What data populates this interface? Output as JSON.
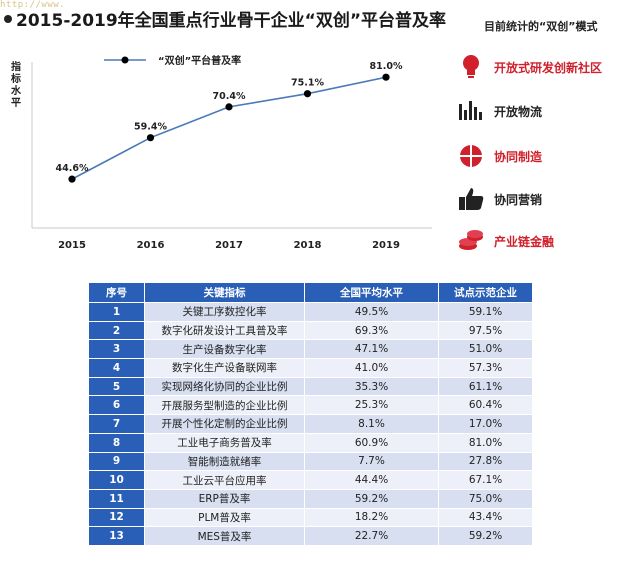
{
  "watermark": "http://www.",
  "title": "2015-2019年全国重点行业骨干企业“双创”平台普及率",
  "chart_data": {
    "type": "line",
    "title": "2015-2019年全国重点行业骨干企业“双创”平台普及率",
    "ylabel": "指标水平",
    "xlabel": "",
    "categories": [
      "2015",
      "2016",
      "2017",
      "2018",
      "2019"
    ],
    "series": [
      {
        "name": "“双创”平台普及率",
        "values": [
          44.6,
          59.4,
          70.4,
          75.1,
          81.0
        ],
        "labels": [
          "44.6%",
          "59.4%",
          "70.4%",
          "75.1%",
          "81.0%"
        ]
      }
    ],
    "ylim": [
      30,
      90
    ],
    "grid": false,
    "legend": "top-left",
    "colors": {
      "line": "#4a7ab8",
      "marker": "#000000"
    }
  },
  "modes": {
    "title": "目前统计的“双创”模式",
    "items": [
      {
        "label": "开放式研发创新社区",
        "icon": "lightbulb-icon",
        "color": "#d0202c"
      },
      {
        "label": "开放物流",
        "icon": "bar-chart-icon",
        "color": "#222222"
      },
      {
        "label": "协同制造",
        "icon": "pie-chart-icon",
        "color": "#d0202c"
      },
      {
        "label": "协同营销",
        "icon": "thumbs-up-icon",
        "color": "#222222"
      },
      {
        "label": "产业链金融",
        "icon": "coins-icon",
        "color": "#d0202c"
      }
    ]
  },
  "table": {
    "headers": [
      "序号",
      "关键指标",
      "全国平均水平",
      "试点示范企业"
    ],
    "rows": [
      {
        "idx": "1",
        "name": "关键工序数控化率",
        "avg": "49.5%",
        "pilot": "59.1%"
      },
      {
        "idx": "2",
        "name": "数字化研发设计工具普及率",
        "avg": "69.3%",
        "pilot": "97.5%"
      },
      {
        "idx": "3",
        "name": "生产设备数字化率",
        "avg": "47.1%",
        "pilot": "51.0%"
      },
      {
        "idx": "4",
        "name": "数字化生产设备联网率",
        "avg": "41.0%",
        "pilot": "57.3%"
      },
      {
        "idx": "5",
        "name": "实现网络化协同的企业比例",
        "avg": "35.3%",
        "pilot": "61.1%"
      },
      {
        "idx": "6",
        "name": "开展服务型制造的企业比例",
        "avg": "25.3%",
        "pilot": "60.4%"
      },
      {
        "idx": "7",
        "name": "开展个性化定制的企业比例",
        "avg": "8.1%",
        "pilot": "17.0%"
      },
      {
        "idx": "8",
        "name": "工业电子商务普及率",
        "avg": "60.9%",
        "pilot": "81.0%"
      },
      {
        "idx": "9",
        "name": "智能制造就绪率",
        "avg": "7.7%",
        "pilot": "27.8%"
      },
      {
        "idx": "10",
        "name": "工业云平台应用率",
        "avg": "44.4%",
        "pilot": "67.1%"
      },
      {
        "idx": "11",
        "name": "ERP普及率",
        "avg": "59.2%",
        "pilot": "75.0%"
      },
      {
        "idx": "12",
        "name": "PLM普及率",
        "avg": "18.2%",
        "pilot": "43.4%"
      },
      {
        "idx": "13",
        "name": "MES普及率",
        "avg": "22.7%",
        "pilot": "59.2%"
      }
    ]
  }
}
